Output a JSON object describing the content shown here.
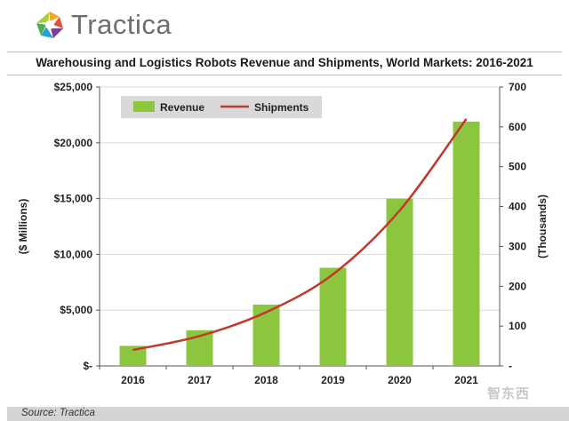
{
  "brand": {
    "name": "Tractica"
  },
  "footer": {
    "source": "Source: Tractica"
  },
  "watermark": {
    "text": "智东西"
  },
  "chart_data": {
    "type": "bar",
    "title": "Warehousing and Logistics Robots Revenue and Shipments, World Markets: 2016-2021",
    "categories": [
      "2016",
      "2017",
      "2018",
      "2019",
      "2020",
      "2021"
    ],
    "series": [
      {
        "name": "Revenue",
        "type": "bar",
        "axis": "left",
        "color": "#8cc63f",
        "values": [
          1800,
          3200,
          5500,
          8800,
          15000,
          21900
        ]
      },
      {
        "name": "Shipments",
        "type": "line",
        "axis": "right",
        "color": "#c0392b",
        "values": [
          40,
          75,
          135,
          230,
          390,
          620
        ]
      }
    ],
    "ylabel": "($ Millions)",
    "y2label": "(Thousands)",
    "ylim": [
      0,
      25000
    ],
    "y2lim": [
      0,
      700
    ],
    "yticks": [
      "$-",
      "$5,000",
      "$10,000",
      "$15,000",
      "$20,000",
      "$25,000"
    ],
    "y2ticks": [
      "-",
      "100",
      "200",
      "300",
      "400",
      "500",
      "600",
      "700"
    ],
    "legend_position": "top-left",
    "grid": true
  }
}
